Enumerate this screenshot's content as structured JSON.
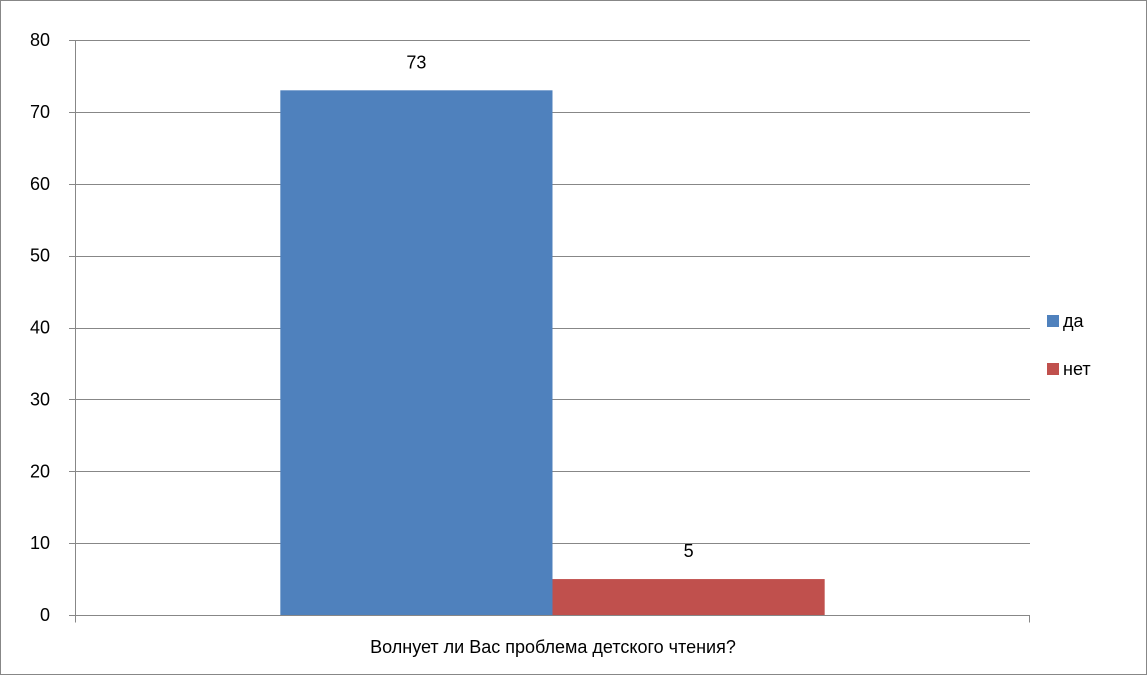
{
  "chart_data": {
    "type": "bar",
    "categories": [
      "Волнует ли Вас проблема детского чтения?"
    ],
    "series": [
      {
        "name": "да",
        "values": [
          73
        ],
        "color": "#4F81BD"
      },
      {
        "name": "нет",
        "values": [
          5
        ],
        "color": "#C0504D"
      }
    ],
    "ylim": [
      0,
      80
    ],
    "yticks": [
      0,
      10,
      20,
      30,
      40,
      50,
      60,
      70,
      80
    ],
    "grid": true,
    "legend_position": "right"
  }
}
